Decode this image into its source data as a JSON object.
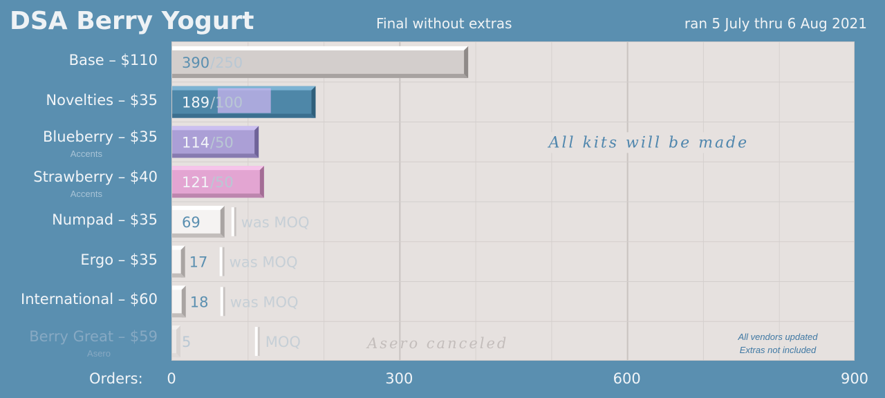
{
  "header": {
    "title": "DSA Berry Yogurt",
    "subtitle": "Final without extras",
    "dates": "ran 5 July thru 6 Aug 2021"
  },
  "axis": {
    "orders_label": "Orders:",
    "ticks": [
      "0",
      "300",
      "600",
      "900"
    ]
  },
  "annotations": {
    "center": "All kits will be made",
    "canceled": "Asero canceled",
    "note_line1": "All vendors updated",
    "note_line2": "Extras not included"
  },
  "chart_data": {
    "type": "bar",
    "orientation": "horizontal",
    "xlim": [
      0,
      900
    ],
    "grid": true,
    "categories": [
      {
        "label": "Base – $110",
        "sub": "",
        "value": 390,
        "moq": 250,
        "moq_text": "/250",
        "style": "grey"
      },
      {
        "label": "Novelties – $35",
        "sub": "",
        "value": 189,
        "moq": 100,
        "moq_text": "/100",
        "style": "blue"
      },
      {
        "label": "Blueberry – $35",
        "sub": "Accents",
        "value": 114,
        "moq": 50,
        "moq_text": "/50",
        "style": "purple"
      },
      {
        "label": "Strawberry – $40",
        "sub": "Accents",
        "value": 121,
        "moq": 50,
        "moq_text": "/50",
        "style": "pink"
      },
      {
        "label": "Numpad – $35",
        "sub": "",
        "value": 69,
        "moq": 80,
        "moq_text": "was MOQ",
        "style": "white"
      },
      {
        "label": "Ergo – $35",
        "sub": "",
        "value": 17,
        "moq": 50,
        "moq_text": "was MOQ",
        "style": "white"
      },
      {
        "label": "International – $60",
        "sub": "",
        "value": 18,
        "moq": 50,
        "moq_text": "was MOQ",
        "style": "white"
      },
      {
        "label": "Berry Great – $59",
        "sub": "Asero",
        "value": 5,
        "moq": 100,
        "moq_text": "MOQ",
        "style": "faded"
      }
    ]
  }
}
